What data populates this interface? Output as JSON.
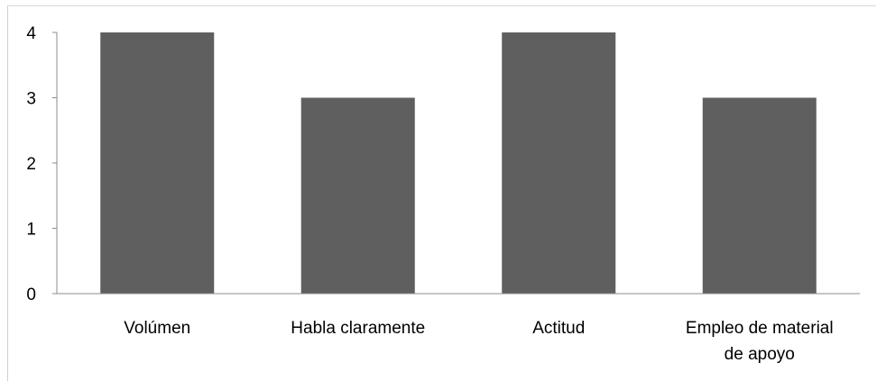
{
  "chart_data": {
    "type": "bar",
    "categories": [
      "Volúmen",
      "Habla claramente",
      "Actitud",
      "Empleo de material de apoyo"
    ],
    "category_lines": [
      [
        "Volúmen"
      ],
      [
        "Habla claramente"
      ],
      [
        "Actitud"
      ],
      [
        "Empleo de material",
        "de apoyo"
      ]
    ],
    "values": [
      4,
      3,
      4,
      3
    ],
    "yticks": [
      "0",
      "1",
      "2",
      "3",
      "4"
    ],
    "ylim": [
      0,
      4
    ],
    "grid": false,
    "bar_color": "#5f5f5f",
    "axis_color": "#8c8c8c"
  }
}
